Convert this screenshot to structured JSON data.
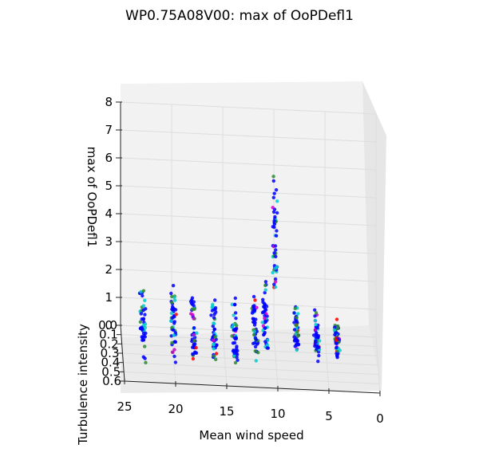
{
  "chart_data": {
    "type": "scatter",
    "projection": "3d",
    "title": "WP0.75A08V00: max of OoPDefl1",
    "xlabel": "Mean wind speed",
    "ylabel": "Turbulence intensity",
    "zlabel": "max of OoPDefl1",
    "xlim": [
      0,
      25
    ],
    "ylim": [
      0,
      0.6
    ],
    "zlim": [
      0,
      8
    ],
    "x_ticks": [
      "25",
      "20",
      "15",
      "10",
      "5",
      "0"
    ],
    "y_ticks": [
      "0.0",
      "0.1",
      "0.2",
      "0.3",
      "0.4",
      "0.5",
      "0.6"
    ],
    "z_ticks": [
      "0",
      "1",
      "2",
      "3",
      "4",
      "5",
      "6",
      "7",
      "8"
    ],
    "grid": true,
    "legend": "none",
    "colors": [
      "#0000ff",
      "#00cccc",
      "#2e8b2e",
      "#cc00cc",
      "#ff0000"
    ],
    "clusters": [
      {
        "wind_speed": 4,
        "ti_range": [
          0.15,
          0.45
        ],
        "z_range": [
          0.4,
          1.3
        ]
      },
      {
        "wind_speed": 6,
        "ti_range": [
          0.15,
          0.45
        ],
        "z_range": [
          0.5,
          1.5
        ]
      },
      {
        "wind_speed": 8,
        "ti_range": [
          0.15,
          0.45
        ],
        "z_range": [
          0.8,
          1.8
        ]
      },
      {
        "wind_speed": 10,
        "ti_range": [
          0.05,
          0.35
        ],
        "z_range": [
          2.5,
          6.3
        ]
      },
      {
        "wind_speed": 11,
        "ti_range": [
          0.05,
          0.45
        ],
        "z_range": [
          0.5,
          2.2
        ]
      },
      {
        "wind_speed": 12,
        "ti_range": [
          0.05,
          0.45
        ],
        "z_range": [
          0.3,
          1.8
        ]
      },
      {
        "wind_speed": 14,
        "ti_range": [
          0.05,
          0.45
        ],
        "z_range": [
          0.2,
          1.5
        ]
      },
      {
        "wind_speed": 16,
        "ti_range": [
          0.05,
          0.45
        ],
        "z_range": [
          0.2,
          1.7
        ]
      },
      {
        "wind_speed": 18,
        "ti_range": [
          0.05,
          0.45
        ],
        "z_range": [
          0.1,
          1.7
        ]
      },
      {
        "wind_speed": 20,
        "ti_range": [
          0.05,
          0.45
        ],
        "z_range": [
          0.1,
          2.2
        ]
      },
      {
        "wind_speed": 23,
        "ti_range": [
          0.05,
          0.45
        ],
        "z_range": [
          0.1,
          2.0
        ]
      }
    ]
  }
}
